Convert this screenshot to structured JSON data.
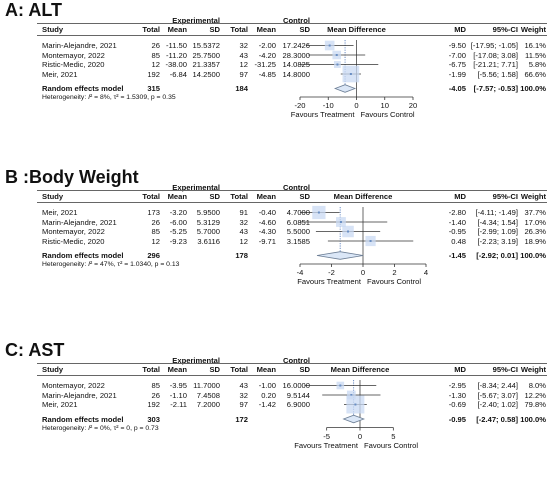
{
  "headers": {
    "group1": "Experimental",
    "group2": "Control",
    "study": "Study",
    "total": "Total",
    "mean": "Mean",
    "sd": "SD",
    "effect": "Mean Difference",
    "md": "MD",
    "ci": "95%-CI",
    "weight": "Weight"
  },
  "chart_data": [
    {
      "type": "forest",
      "panel_title": "A: ALT",
      "studies": [
        {
          "study": "Marin-Alejandre, 2021",
          "e_total": "26",
          "e_mean": "-11.50",
          "e_sd": "15.5372",
          "c_total": "32",
          "c_mean": "-2.00",
          "c_sd": "17.2426",
          "md_text": "-9.50",
          "ci_text": "[-17.95; -1.05]",
          "weight_text": "16.1%",
          "md": -9.5,
          "lo": -17.95,
          "hi": -1.05,
          "weight": 16.1
        },
        {
          "study": "Montemayor, 2022",
          "e_total": "85",
          "e_mean": "-11.20",
          "e_sd": "25.7500",
          "c_total": "43",
          "c_mean": "-4.20",
          "c_sd": "28.3000",
          "md_text": "-7.00",
          "ci_text": "[-17.08; 3.08]",
          "weight_text": "11.5%",
          "md": -7.0,
          "lo": -17.08,
          "hi": 3.08,
          "weight": 11.5
        },
        {
          "study": "Ristic-Medic, 2020",
          "e_total": "12",
          "e_mean": "-38.00",
          "e_sd": "21.3357",
          "c_total": "12",
          "c_mean": "-31.25",
          "c_sd": "14.0825",
          "md_text": "-6.75",
          "ci_text": "[-21.21; 7.71]",
          "weight_text": "5.8%",
          "md": -6.75,
          "lo": -21.21,
          "hi": 7.71,
          "weight": 5.8
        },
        {
          "study": "Meir, 2021",
          "e_total": "192",
          "e_mean": "-6.84",
          "e_sd": "14.2500",
          "c_total": "97",
          "c_mean": "-4.85",
          "c_sd": "14.8000",
          "md_text": "-1.99",
          "ci_text": "[-5.56; 1.58]",
          "weight_text": "66.6%",
          "md": -1.99,
          "lo": -5.56,
          "hi": 1.58,
          "weight": 66.6
        }
      ],
      "pooled": {
        "label": "Random effects model",
        "e_total": "315",
        "c_total": "184",
        "md_text": "-4.05",
        "ci_text": "[-7.57; -0.53]",
        "weight_text": "100.0%",
        "md": -4.05,
        "lo": -7.57,
        "hi": -0.53
      },
      "heterogeneity": {
        "prefix": "Heterogeneity: ",
        "I2": "I",
        "rest": "² = 8%, τ² = 1.5309, p = 0.35"
      },
      "xlim": [
        -20,
        20
      ],
      "ticks": [
        -20,
        -10,
        0,
        10,
        20
      ],
      "tick_labels": [
        "-20",
        "-10",
        "0",
        "10",
        "20"
      ],
      "favours_left": "Favours Treatment",
      "favours_right": "Favours Control"
    },
    {
      "type": "forest",
      "panel_title": "B :Body Weight",
      "studies": [
        {
          "study": "Meir, 2021",
          "e_total": "173",
          "e_mean": "-3.20",
          "e_sd": "5.9500",
          "c_total": "91",
          "c_mean": "-0.40",
          "c_sd": "4.7000",
          "md_text": "-2.80",
          "ci_text": "[-4.11; -1.49]",
          "weight_text": "37.7%",
          "md": -2.8,
          "lo": -4.11,
          "hi": -1.49,
          "weight": 37.7
        },
        {
          "study": "Marin-Alejandre, 2021",
          "e_total": "26",
          "e_mean": "-6.00",
          "e_sd": "5.3129",
          "c_total": "32",
          "c_mean": "-4.60",
          "c_sd": "6.0851",
          "md_text": "-1.40",
          "ci_text": "[-4.34; 1.54]",
          "weight_text": "17.0%",
          "md": -1.4,
          "lo": -4.34,
          "hi": 1.54,
          "weight": 17.0
        },
        {
          "study": "Montemayor, 2022",
          "e_total": "85",
          "e_mean": "-5.25",
          "e_sd": "5.7000",
          "c_total": "43",
          "c_mean": "-4.30",
          "c_sd": "5.5000",
          "md_text": "-0.95",
          "ci_text": "[-2.99; 1.09]",
          "weight_text": "26.3%",
          "md": -0.95,
          "lo": -2.99,
          "hi": 1.09,
          "weight": 26.3
        },
        {
          "study": "Ristic-Medic, 2020",
          "e_total": "12",
          "e_mean": "-9.23",
          "e_sd": "3.6116",
          "c_total": "12",
          "c_mean": "-9.71",
          "c_sd": "3.1585",
          "md_text": "0.48",
          "ci_text": "[-2.23; 3.19]",
          "weight_text": "18.9%",
          "md": 0.48,
          "lo": -2.23,
          "hi": 3.19,
          "weight": 18.9
        }
      ],
      "pooled": {
        "label": "Random effects model",
        "e_total": "296",
        "c_total": "178",
        "md_text": "-1.45",
        "ci_text": "[-2.92; 0.01]",
        "weight_text": "100.0%",
        "md": -1.45,
        "lo": -2.92,
        "hi": 0.01
      },
      "heterogeneity": {
        "prefix": "Heterogeneity: ",
        "I2": "I",
        "rest": "² = 47%, τ² = 1.0340, p = 0.13"
      },
      "xlim": [
        -4,
        4
      ],
      "ticks": [
        -4,
        -2,
        0,
        2,
        4
      ],
      "tick_labels": [
        "-4",
        "-2",
        "0",
        "2",
        "4"
      ],
      "favours_left": "Favours Treatment",
      "favours_right": "Favours Control"
    },
    {
      "type": "forest",
      "panel_title": "C: AST",
      "studies": [
        {
          "study": "Montemayor, 2022",
          "e_total": "85",
          "e_mean": "-3.95",
          "e_sd": "11.7000",
          "c_total": "43",
          "c_mean": "-1.00",
          "c_sd": "16.0000",
          "md_text": "-2.95",
          "ci_text": "[-8.34; 2.44]",
          "weight_text": "8.0%",
          "md": -2.95,
          "lo": -8.34,
          "hi": 2.44,
          "weight": 8.0
        },
        {
          "study": "Marin-Alejandre, 2021",
          "e_total": "26",
          "e_mean": "-1.10",
          "e_sd": "7.4508",
          "c_total": "32",
          "c_mean": "0.20",
          "c_sd": "9.5144",
          "md_text": "-1.30",
          "ci_text": "[-5.67; 3.07]",
          "weight_text": "12.2%",
          "md": -1.3,
          "lo": -5.67,
          "hi": 3.07,
          "weight": 12.2
        },
        {
          "study": "Meir, 2021",
          "e_total": "192",
          "e_mean": "-2.11",
          "e_sd": "7.2000",
          "c_total": "97",
          "c_mean": "-1.42",
          "c_sd": "6.9000",
          "md_text": "-0.69",
          "ci_text": "[-2.40; 1.02]",
          "weight_text": "79.8%",
          "md": -0.69,
          "lo": -2.4,
          "hi": 1.02,
          "weight": 79.8
        }
      ],
      "pooled": {
        "label": "Random effects model",
        "e_total": "303",
        "c_total": "172",
        "md_text": "-0.95",
        "ci_text": "[-2.47; 0.58]",
        "weight_text": "100.0%",
        "md": -0.95,
        "lo": -2.47,
        "hi": 0.58
      },
      "heterogeneity": {
        "prefix": "Heterogeneity: ",
        "I2": "I",
        "rest": "² = 0%, τ² = 0, p = 0.73"
      },
      "xlim": [
        -9,
        9
      ],
      "ticks": [
        -5,
        0,
        5
      ],
      "tick_labels": [
        "-5",
        "0",
        "5"
      ],
      "favours_left": "Favours Treatment",
      "favours_right": "Favours Control"
    }
  ],
  "colors": {
    "square": "#6a8fc4",
    "square_fill": "#c9daf3",
    "diamond_fill": "#dbe7f7",
    "diamond_stroke": "#6d7f96",
    "line": "#333333",
    "dotted": "#4a73b8"
  }
}
